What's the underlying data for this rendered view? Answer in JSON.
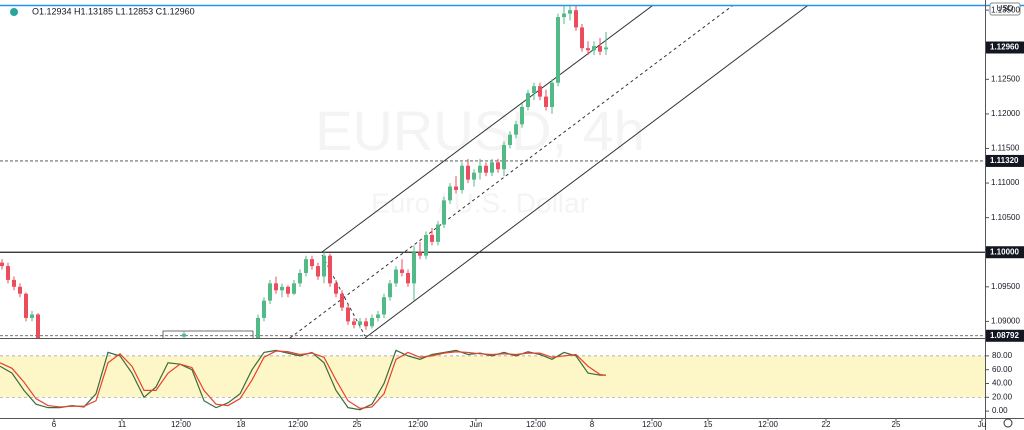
{
  "chart_data": [
    {
      "type": "candlestick",
      "title": "EURUSD, 4h",
      "subtitle": "Euro / U.S. Dollar",
      "ohlc_legend": "O1.12934 H1.13185 L1.12853 C1.12960",
      "currency": "USD",
      "up_color": "#53b987",
      "down_color": "#eb4d5c",
      "xlim": [
        0,
        246.25
      ],
      "xticks": [
        {
          "value": 13.5,
          "label": "6"
        },
        {
          "value": 30.5,
          "label": "11"
        },
        {
          "value": 45.25,
          "label": "12:00"
        },
        {
          "value": 60.25,
          "label": "18"
        },
        {
          "value": 74.5,
          "label": "12:00"
        },
        {
          "value": 89.25,
          "label": "25"
        },
        {
          "value": 104.5,
          "label": "12:00"
        },
        {
          "value": 119,
          "label": "Jun"
        },
        {
          "value": 134,
          "label": "12:00"
        },
        {
          "value": 148,
          "label": "8"
        },
        {
          "value": 163,
          "label": "12:00"
        },
        {
          "value": 177,
          "label": "15"
        },
        {
          "value": 192,
          "label": "12:00"
        },
        {
          "value": 206.5,
          "label": "22"
        },
        {
          "value": 224,
          "label": "25"
        },
        {
          "value": 245.5,
          "label": "Ju"
        }
      ],
      "ylim": [
        1.0876,
        1.1356
      ],
      "yticks": [
        {
          "value": 1.135,
          "label": "1.13500"
        },
        {
          "value": 1.125,
          "label": "1.12500"
        },
        {
          "value": 1.12,
          "label": "1.12000"
        },
        {
          "value": 1.115,
          "label": "1.11500"
        },
        {
          "value": 1.11,
          "label": "1.11000"
        },
        {
          "value": 1.105,
          "label": "1.10500"
        },
        {
          "value": 1.095,
          "label": "1.09500"
        },
        {
          "value": 1.09,
          "label": "1.09000"
        }
      ],
      "levels": [
        {
          "value": 1.1296,
          "label": "1.12960",
          "style": "none"
        },
        {
          "value": 1.1132,
          "label": "1.11320",
          "style": "dashed"
        },
        {
          "value": 1.1,
          "label": "1.10000",
          "style": "solid"
        },
        {
          "value": 1.08792,
          "label": "1.08792",
          "style": "dashed"
        }
      ],
      "x": [
        0.5,
        2,
        3.5,
        5,
        6.5,
        8,
        9.5,
        46,
        64.5,
        66,
        67.5,
        69,
        70.5,
        72,
        73.5,
        75,
        76.5,
        78,
        79.5,
        81,
        82.5,
        84,
        85.5,
        87,
        88.5,
        90,
        91.5,
        93,
        94.5,
        96,
        97.5,
        99,
        100.5,
        102,
        103.5,
        105,
        106.5,
        108,
        109.5,
        111,
        112.5,
        114,
        115.5,
        117,
        118.5,
        120,
        121.5,
        123,
        124.5,
        126,
        127.5,
        129,
        130.5,
        132,
        133.5,
        135,
        136.5,
        138,
        139.5,
        141,
        142.5,
        144,
        145.5,
        147,
        148.5,
        150,
        151.5
      ],
      "open": [
        1.0985,
        1.098,
        1.096,
        1.095,
        1.094,
        1.0905,
        1.091,
        1.0878,
        1.087,
        1.0905,
        1.093,
        1.0955,
        1.0945,
        1.095,
        1.094,
        1.0955,
        1.097,
        1.099,
        1.098,
        1.0965,
        1.0995,
        1.0955,
        1.094,
        1.092,
        1.09,
        1.0895,
        1.09,
        1.0893,
        1.0905,
        1.091,
        1.0935,
        1.0955,
        1.0975,
        1.097,
        1.0955,
        1.1,
        1.0995,
        1.1025,
        1.1015,
        1.104,
        1.1075,
        1.1095,
        1.109,
        1.1125,
        1.1105,
        1.1115,
        1.1125,
        1.1115,
        1.113,
        1.112,
        1.1155,
        1.117,
        1.1185,
        1.121,
        1.123,
        1.124,
        1.1225,
        1.121,
        1.1245,
        1.134,
        1.1345,
        1.135,
        1.1325,
        1.1295,
        1.1292,
        1.1298,
        1.12934
      ],
      "high": [
        1.099,
        1.0985,
        1.0965,
        1.0955,
        1.0942,
        1.0915,
        1.0912,
        1.0885,
        1.091,
        1.0935,
        1.096,
        1.0965,
        1.0955,
        1.0952,
        1.096,
        1.0975,
        1.0995,
        1.0995,
        1.0985,
        1.1,
        1.0998,
        1.096,
        1.0945,
        1.0925,
        1.0905,
        1.0905,
        1.0905,
        1.091,
        1.0915,
        1.094,
        1.096,
        1.098,
        1.099,
        1.0975,
        1.101,
        1.1015,
        1.103,
        1.1035,
        1.1045,
        1.108,
        1.11,
        1.111,
        1.113,
        1.1135,
        1.112,
        1.1135,
        1.113,
        1.1135,
        1.1135,
        1.116,
        1.1175,
        1.119,
        1.1215,
        1.1235,
        1.1245,
        1.1245,
        1.1235,
        1.125,
        1.1345,
        1.136,
        1.1365,
        1.137,
        1.133,
        1.1305,
        1.1305,
        1.131,
        1.13185
      ],
      "low": [
        1.0975,
        1.0955,
        1.0945,
        1.0935,
        1.09,
        1.09,
        1.086,
        1.087,
        1.0865,
        1.09,
        1.0925,
        1.094,
        1.0935,
        1.0935,
        1.0938,
        1.095,
        1.0965,
        1.0975,
        1.096,
        1.0955,
        1.095,
        1.0935,
        1.0915,
        1.0895,
        1.089,
        1.089,
        1.0888,
        1.089,
        1.09,
        1.0905,
        1.093,
        1.095,
        1.0965,
        1.095,
        1.093,
        1.099,
        1.099,
        1.101,
        1.101,
        1.1035,
        1.107,
        1.1085,
        1.1085,
        1.11,
        1.1095,
        1.1105,
        1.111,
        1.111,
        1.1115,
        1.111,
        1.115,
        1.1165,
        1.118,
        1.1205,
        1.122,
        1.122,
        1.1205,
        1.12,
        1.124,
        1.133,
        1.1335,
        1.132,
        1.129,
        1.1285,
        1.1285,
        1.1285,
        1.12853
      ],
      "close": [
        1.098,
        1.096,
        1.095,
        1.094,
        1.0905,
        1.091,
        1.087,
        1.0882,
        1.0905,
        1.093,
        1.0955,
        1.0945,
        1.095,
        1.094,
        1.0955,
        1.097,
        1.099,
        1.098,
        1.0965,
        1.0995,
        1.0955,
        1.094,
        1.092,
        1.09,
        1.0895,
        1.09,
        1.0893,
        1.0905,
        1.091,
        1.0935,
        1.0955,
        1.0975,
        1.097,
        1.0955,
        1.1,
        1.0995,
        1.1025,
        1.1015,
        1.104,
        1.1075,
        1.1095,
        1.109,
        1.1125,
        1.1105,
        1.1115,
        1.1125,
        1.1115,
        1.113,
        1.112,
        1.1155,
        1.117,
        1.1185,
        1.121,
        1.123,
        1.124,
        1.1225,
        1.121,
        1.1245,
        1.134,
        1.1345,
        1.135,
        1.1325,
        1.1295,
        1.1292,
        1.1298,
        1.129,
        1.1296
      ]
    },
    {
      "type": "line",
      "xlim": [
        0,
        246.25
      ],
      "ylim": [
        -10,
        103
      ],
      "yticks": [
        {
          "value": 80,
          "label": "80.00"
        },
        {
          "value": 60,
          "label": "60.00"
        },
        {
          "value": 40,
          "label": "40.00"
        },
        {
          "value": 20,
          "label": "20.00"
        },
        {
          "value": 0,
          "label": "0.00"
        }
      ],
      "band": [
        20,
        80
      ],
      "band_color": "#fdf7c8",
      "x": [
        0,
        3,
        6,
        9,
        12,
        15,
        18,
        21,
        24,
        27,
        30,
        33,
        36,
        39,
        42,
        45,
        48,
        51,
        54,
        57,
        60,
        63,
        66,
        69,
        72,
        75,
        78,
        81,
        84,
        87,
        90,
        93,
        96,
        99,
        102,
        105,
        108,
        111,
        114,
        117,
        120,
        123,
        126,
        129,
        132,
        135,
        138,
        141,
        144,
        147,
        150,
        151.5
      ],
      "series": [
        {
          "color": "#3d6b3d",
          "values": [
            65,
            55,
            30,
            10,
            5,
            5,
            8,
            6,
            25,
            85,
            80,
            55,
            20,
            35,
            70,
            68,
            60,
            15,
            5,
            12,
            25,
            60,
            85,
            88,
            84,
            80,
            85,
            70,
            30,
            5,
            2,
            10,
            40,
            88,
            80,
            75,
            82,
            85,
            88,
            82,
            84,
            80,
            85,
            80,
            86,
            82,
            75,
            85,
            80,
            55,
            52,
            52
          ]
        },
        {
          "color": "#e8412c",
          "values": [
            70,
            62,
            42,
            18,
            8,
            6,
            7,
            7,
            15,
            70,
            83,
            65,
            30,
            30,
            55,
            68,
            63,
            30,
            10,
            8,
            18,
            45,
            78,
            87,
            86,
            82,
            84,
            78,
            45,
            15,
            4,
            6,
            25,
            75,
            85,
            78,
            80,
            84,
            86,
            85,
            83,
            82,
            83,
            82,
            84,
            84,
            78,
            80,
            82,
            65,
            53,
            52
          ]
        }
      ]
    }
  ]
}
